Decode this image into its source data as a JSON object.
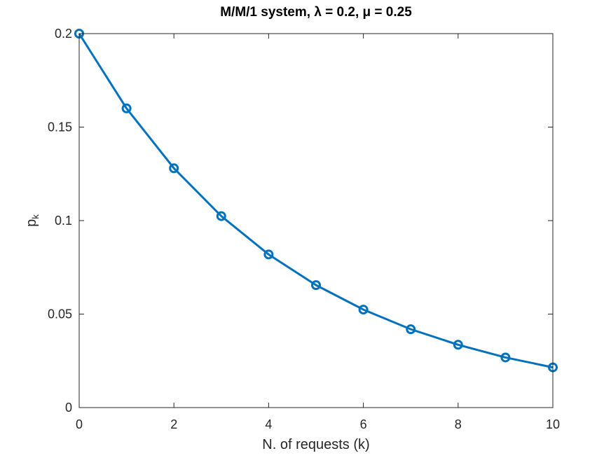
{
  "chart_data": {
    "type": "line",
    "title": "M/M/1 system, λ = 0.2, μ = 0.25",
    "xlabel": "N. of requests (k)",
    "ylabel_main": "p",
    "ylabel_sub": "k",
    "xlim": [
      0,
      10
    ],
    "ylim": [
      0,
      0.2
    ],
    "xticks": [
      "0",
      "2",
      "4",
      "6",
      "8",
      "10"
    ],
    "yticks": [
      "0",
      "0.05",
      "0.1",
      "0.15",
      "0.2"
    ],
    "grid": false,
    "marker": "circle",
    "series": [
      {
        "color": "#0072BD",
        "x": [
          0,
          1,
          2,
          3,
          4,
          5,
          6,
          7,
          8,
          9,
          10
        ],
        "y": [
          0.2,
          0.16,
          0.128,
          0.1024,
          0.0819,
          0.0655,
          0.0524,
          0.0419,
          0.0336,
          0.0268,
          0.0215
        ]
      }
    ]
  }
}
